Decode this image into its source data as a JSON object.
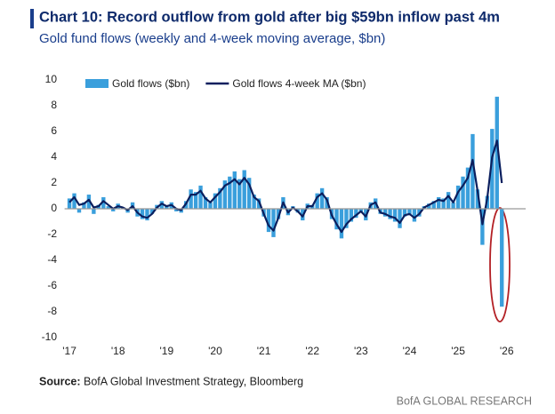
{
  "chart_data": {
    "type": "bar-line",
    "title": "Chart 10: Record outflow from gold after big $59bn inflow past 4m",
    "subtitle": "Gold fund flows (weekly and 4-week moving average, $bn)",
    "source_label": "Source:",
    "source": "BofA Global Investment Strategy, Bloomberg",
    "brand": "BofA GLOBAL RESEARCH",
    "x": [
      2017.0,
      2017.1,
      2017.2,
      2017.3,
      2017.4,
      2017.5,
      2017.6,
      2017.7,
      2017.8,
      2017.9,
      2018.0,
      2018.1,
      2018.2,
      2018.3,
      2018.4,
      2018.5,
      2018.6,
      2018.7,
      2018.8,
      2018.9,
      2019.0,
      2019.1,
      2019.2,
      2019.3,
      2019.4,
      2019.5,
      2019.6,
      2019.7,
      2019.8,
      2019.9,
      2020.0,
      2020.1,
      2020.2,
      2020.3,
      2020.4,
      2020.5,
      2020.6,
      2020.7,
      2020.8,
      2020.9,
      2021.0,
      2021.1,
      2021.2,
      2021.3,
      2021.4,
      2021.5,
      2021.6,
      2021.7,
      2021.8,
      2021.9,
      2022.0,
      2022.1,
      2022.2,
      2022.3,
      2022.4,
      2022.5,
      2022.6,
      2022.7,
      2022.8,
      2022.9,
      2023.0,
      2023.1,
      2023.2,
      2023.3,
      2023.4,
      2023.5,
      2023.6,
      2023.7,
      2023.8,
      2023.9,
      2024.0,
      2024.1,
      2024.2,
      2024.3,
      2024.4,
      2024.5,
      2024.6,
      2024.7,
      2024.8,
      2024.9,
      2025.0,
      2025.1,
      2025.2,
      2025.3,
      2025.4,
      2025.5,
      2025.6,
      2025.7,
      2025.8,
      2025.9
    ],
    "series": [
      {
        "name": "Gold flows ($bn)",
        "kind": "bar",
        "color": "#3a9fdc",
        "values": [
          0.8,
          1.2,
          -0.3,
          0.5,
          1.1,
          -0.4,
          0.3,
          0.9,
          0.2,
          -0.2,
          0.4,
          0.1,
          -0.3,
          0.5,
          -0.6,
          -0.8,
          -0.9,
          -0.4,
          0.3,
          0.6,
          0.2,
          0.5,
          -0.2,
          -0.3,
          0.6,
          1.5,
          1.3,
          1.8,
          0.9,
          0.5,
          1.2,
          1.6,
          2.2,
          2.5,
          2.9,
          2.3,
          3.0,
          2.4,
          1.1,
          0.8,
          -0.6,
          -1.8,
          -2.2,
          -0.8,
          0.9,
          -0.5,
          0.2,
          -0.3,
          -0.9,
          0.4,
          0.3,
          1.2,
          1.6,
          0.9,
          -0.8,
          -1.6,
          -2.3,
          -1.5,
          -1.0,
          -0.7,
          -0.3,
          -0.9,
          0.5,
          0.8,
          -0.4,
          -0.6,
          -0.8,
          -1.0,
          -1.5,
          -0.6,
          -0.5,
          -1.0,
          -0.6,
          0.2,
          0.4,
          0.6,
          0.9,
          0.8,
          1.3,
          0.5,
          1.8,
          2.5,
          3.2,
          5.8,
          1.5,
          -2.8,
          1.0,
          6.2,
          8.7,
          -7.6
        ]
      },
      {
        "name": "Gold flows 4-week MA ($bn)",
        "kind": "line",
        "color": "#0b1f5e",
        "values": [
          0.5,
          0.9,
          0.3,
          0.4,
          0.7,
          0.1,
          0.2,
          0.6,
          0.3,
          0.0,
          0.2,
          0.1,
          -0.1,
          0.2,
          -0.3,
          -0.6,
          -0.7,
          -0.4,
          0.1,
          0.4,
          0.2,
          0.3,
          0.0,
          -0.1,
          0.4,
          1.1,
          1.1,
          1.4,
          0.8,
          0.5,
          0.9,
          1.3,
          1.8,
          2.0,
          2.3,
          1.9,
          2.4,
          1.9,
          0.9,
          0.6,
          -0.4,
          -1.3,
          -1.7,
          -0.7,
          0.5,
          -0.3,
          0.1,
          -0.2,
          -0.6,
          0.2,
          0.2,
          0.9,
          1.2,
          0.7,
          -0.5,
          -1.2,
          -1.8,
          -1.2,
          -0.8,
          -0.5,
          -0.2,
          -0.6,
          0.3,
          0.5,
          -0.3,
          -0.4,
          -0.6,
          -0.7,
          -1.1,
          -0.5,
          -0.4,
          -0.7,
          -0.4,
          0.1,
          0.3,
          0.5,
          0.7,
          0.6,
          1.0,
          0.5,
          1.3,
          1.8,
          2.4,
          3.8,
          1.4,
          -1.2,
          0.8,
          4.0,
          5.3,
          2.0
        ]
      }
    ],
    "xlim": [
      2016.9,
      2026.5
    ],
    "xticks": [
      {
        "value": 2017,
        "label": "'17"
      },
      {
        "value": 2018,
        "label": "'18"
      },
      {
        "value": 2019,
        "label": "'19"
      },
      {
        "value": 2020,
        "label": "'20"
      },
      {
        "value": 2021,
        "label": "'21"
      },
      {
        "value": 2022,
        "label": "'22"
      },
      {
        "value": 2023,
        "label": "'23"
      },
      {
        "value": 2024,
        "label": "'24"
      },
      {
        "value": 2025,
        "label": "'25"
      },
      {
        "value": 2026,
        "label": "'26"
      }
    ],
    "ylim": [
      -10,
      10
    ],
    "yticks": [
      -10,
      -8,
      -6,
      -4,
      -2,
      0,
      2,
      4,
      6,
      8,
      10
    ],
    "grid": false
  }
}
